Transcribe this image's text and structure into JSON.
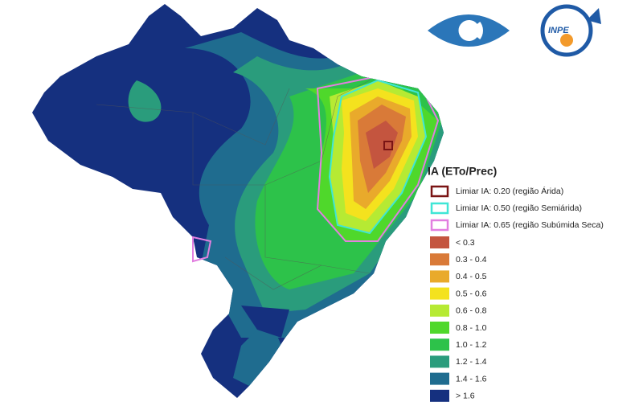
{
  "logos": {
    "inpe_text": "INPE"
  },
  "legend": {
    "title": "IA (ETo/Prec)",
    "thresholds": [
      {
        "label": "Limiar IA: 0.20 (região Árida)",
        "color": "#7a1414"
      },
      {
        "label": "Limiar IA: 0.50 (região Semiárida)",
        "color": "#3fe6d6"
      },
      {
        "label": "Limiar IA: 0.65 (região Subúmida Seca)",
        "color": "#e27fe0"
      }
    ],
    "classes": [
      {
        "label": "< 0.3",
        "color": "#c4553f"
      },
      {
        "label": "0.3 - 0.4",
        "color": "#d97a38"
      },
      {
        "label": "0.4 - 0.5",
        "color": "#e9aa2b"
      },
      {
        "label": "0.5 - 0.6",
        "color": "#f4e21e"
      },
      {
        "label": "0.6 - 0.8",
        "color": "#b6ea33"
      },
      {
        "label": "0.8 - 1.0",
        "color": "#4fd82b"
      },
      {
        "label": "1.0 - 1.2",
        "color": "#2dc24a"
      },
      {
        "label": "1.2 - 1.4",
        "color": "#2a9c7c"
      },
      {
        "label": "1.4 - 1.6",
        "color": "#1f6c8f"
      },
      {
        "label": "> 1.6",
        "color": "#15307f"
      }
    ]
  }
}
